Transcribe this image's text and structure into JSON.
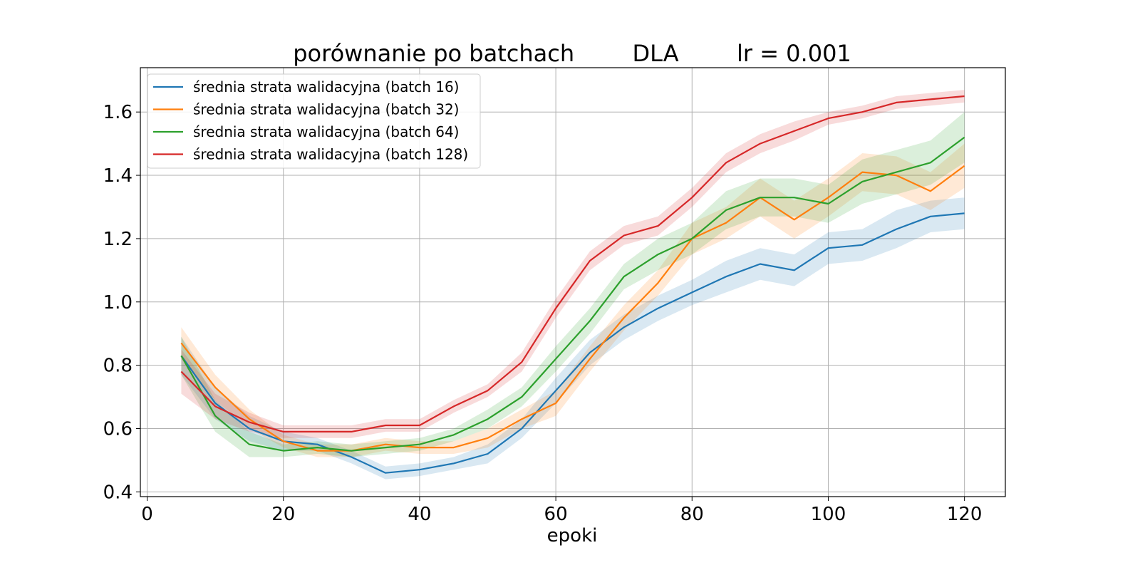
{
  "chart_data": {
    "type": "line",
    "title": "porównanie po batchach        DLA        lr = 0.001",
    "xlabel": "epoki",
    "ylabel": "",
    "xlim": [
      -1,
      126
    ],
    "ylim": [
      0.385,
      1.74
    ],
    "xticks": [
      0,
      20,
      40,
      60,
      80,
      100,
      120
    ],
    "yticks": [
      0.4,
      0.6,
      0.8,
      1.0,
      1.2,
      1.4,
      1.6
    ],
    "ytick_labels": [
      "0.4",
      "0.6",
      "0.8",
      "1.0",
      "1.2",
      "1.4",
      "1.6"
    ],
    "grid": true,
    "legend_position": "top-left",
    "x": [
      5,
      10,
      15,
      20,
      25,
      30,
      35,
      40,
      45,
      50,
      55,
      60,
      65,
      70,
      75,
      80,
      85,
      90,
      95,
      100,
      105,
      110,
      115,
      120
    ],
    "series": [
      {
        "name": "średnia strata walidacyjna (batch 16)",
        "color": "#1f77b4",
        "values": [
          0.83,
          0.68,
          0.6,
          0.56,
          0.55,
          0.51,
          0.46,
          0.47,
          0.49,
          0.52,
          0.6,
          0.72,
          0.84,
          0.92,
          0.98,
          1.03,
          1.08,
          1.12,
          1.1,
          1.17,
          1.18,
          1.23,
          1.27,
          1.28
        ],
        "band": [
          0.06,
          0.05,
          0.04,
          0.03,
          0.02,
          0.02,
          0.02,
          0.02,
          0.02,
          0.03,
          0.03,
          0.04,
          0.04,
          0.04,
          0.04,
          0.04,
          0.05,
          0.05,
          0.05,
          0.05,
          0.05,
          0.06,
          0.05,
          0.05
        ]
      },
      {
        "name": "średnia strata walidacyjna (batch 32)",
        "color": "#ff7f0e",
        "values": [
          0.87,
          0.73,
          0.63,
          0.56,
          0.53,
          0.53,
          0.55,
          0.54,
          0.54,
          0.57,
          0.63,
          0.68,
          0.82,
          0.95,
          1.06,
          1.2,
          1.25,
          1.33,
          1.26,
          1.33,
          1.41,
          1.4,
          1.35,
          1.43
        ],
        "band": [
          0.05,
          0.04,
          0.03,
          0.02,
          0.02,
          0.02,
          0.02,
          0.02,
          0.02,
          0.03,
          0.03,
          0.04,
          0.04,
          0.04,
          0.04,
          0.05,
          0.05,
          0.06,
          0.06,
          0.06,
          0.06,
          0.06,
          0.06,
          0.07
        ]
      },
      {
        "name": "średnia strata walidacyjna (batch 64)",
        "color": "#2ca02c",
        "values": [
          0.83,
          0.64,
          0.55,
          0.53,
          0.54,
          0.53,
          0.54,
          0.55,
          0.58,
          0.63,
          0.7,
          0.82,
          0.94,
          1.08,
          1.15,
          1.2,
          1.29,
          1.33,
          1.33,
          1.31,
          1.38,
          1.41,
          1.44,
          1.52
        ],
        "band": [
          0.06,
          0.05,
          0.04,
          0.02,
          0.02,
          0.02,
          0.02,
          0.02,
          0.02,
          0.03,
          0.03,
          0.04,
          0.04,
          0.04,
          0.05,
          0.05,
          0.06,
          0.06,
          0.06,
          0.06,
          0.07,
          0.07,
          0.07,
          0.08
        ]
      },
      {
        "name": "średnia strata walidacyjna (batch 128)",
        "color": "#d62728",
        "values": [
          0.78,
          0.67,
          0.62,
          0.59,
          0.59,
          0.59,
          0.61,
          0.61,
          0.67,
          0.72,
          0.81,
          0.98,
          1.13,
          1.21,
          1.24,
          1.33,
          1.44,
          1.5,
          1.54,
          1.58,
          1.6,
          1.63,
          1.64,
          1.65
        ],
        "band": [
          0.07,
          0.04,
          0.03,
          0.02,
          0.02,
          0.02,
          0.02,
          0.02,
          0.02,
          0.02,
          0.03,
          0.03,
          0.03,
          0.03,
          0.03,
          0.03,
          0.03,
          0.03,
          0.03,
          0.02,
          0.02,
          0.02,
          0.02,
          0.02
        ]
      }
    ]
  }
}
